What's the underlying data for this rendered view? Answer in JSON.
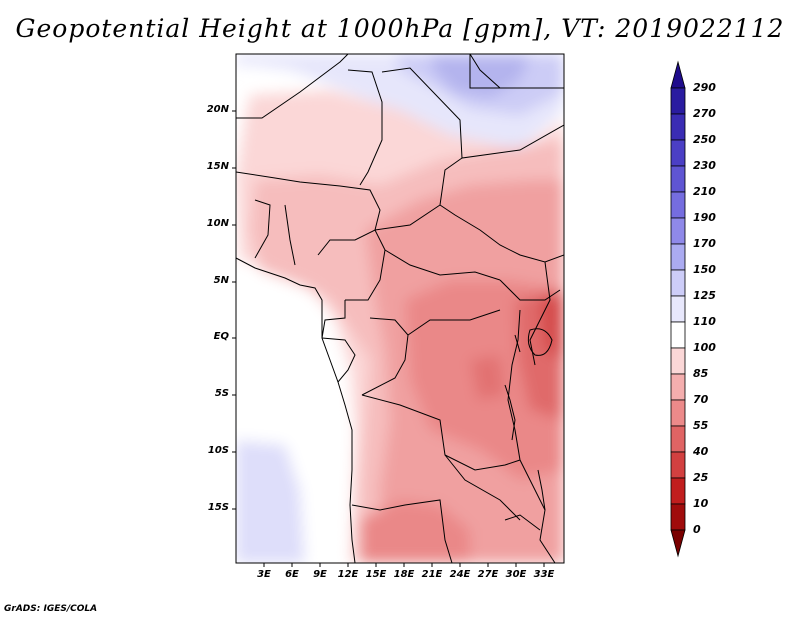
{
  "title": "Geopotential Height at 1000hPa [gpm], VT: 2019022112",
  "credit": "GrADS: IGES/COLA",
  "map": {
    "variable": "Geopotential Height",
    "level": "1000hPa",
    "units": "gpm",
    "valid_time": "2019022112",
    "lat_labels": [
      "20N",
      "15N",
      "10N",
      "5N",
      "EQ",
      "5S",
      "10S",
      "15S"
    ],
    "lon_labels": [
      "3E",
      "6E",
      "9E",
      "12E",
      "15E",
      "18E",
      "21E",
      "24E",
      "27E",
      "30E",
      "33E"
    ]
  },
  "colorbar": {
    "levels": [
      "290",
      "270",
      "250",
      "230",
      "210",
      "190",
      "170",
      "150",
      "125",
      "110",
      "100",
      "85",
      "70",
      "55",
      "40",
      "25",
      "10",
      "0"
    ],
    "colors": [
      "#1f0c8c",
      "#2a1ca0",
      "#3a2cb4",
      "#4b3fc5",
      "#5f55d3",
      "#756ddf",
      "#8f89e9",
      "#ababf1",
      "#cdcdf8",
      "#e8e8fc",
      "#ffffff",
      "#fbd7d7",
      "#f4aeae",
      "#ec8a8a",
      "#e06464",
      "#d24040",
      "#c11e1e",
      "#a00c0c",
      "#7a0000"
    ]
  }
}
